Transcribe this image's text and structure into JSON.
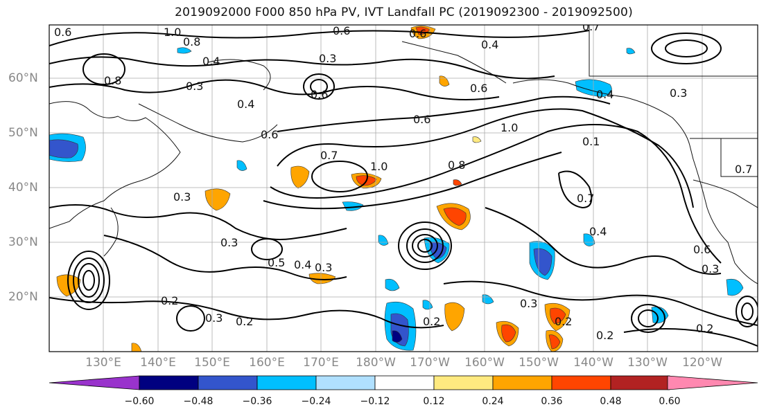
{
  "title": "2019092000 F000 850 hPa PV, IVT Landfall PC (2019092300 - 2019092500)",
  "lat_labels": [
    "60°N",
    "50°N",
    "40°N",
    "30°N",
    "20°N"
  ],
  "lon_labels": [
    "130°E",
    "140°E",
    "150°E",
    "160°E",
    "170°E",
    "180°W",
    "170°W",
    "160°W",
    "150°W",
    "140°W",
    "130°W",
    "120°W"
  ],
  "colorbar": {
    "ticks": [
      "−0.60",
      "−0.48",
      "−0.36",
      "−0.24",
      "−0.12",
      "0.12",
      "0.24",
      "0.36",
      "0.48",
      "0.60"
    ],
    "colors": [
      "#9933cc",
      "#000080",
      "#3355cc",
      "#00bfff",
      "#b0e0ff",
      "#ffffff",
      "#ffea80",
      "#ffa500",
      "#ff4500",
      "#b22222",
      "#ff88b0"
    ]
  },
  "contour_labels": [
    "0.6",
    "1.0",
    "0.8",
    "0.6",
    "0.6",
    "0.4",
    "0.3",
    "0.8",
    "0.3",
    "0.4",
    "0.6",
    "0.4",
    "0.6",
    "0.6",
    "0.7",
    "1.0",
    "0.6",
    "1.0",
    "0.8",
    "0.7",
    "0.4",
    "0.3",
    "0.3",
    "0.5",
    "0.4",
    "0.3",
    "0.2",
    "0.3",
    "0.2",
    "0.2",
    "0.3",
    "0.2",
    "0.6",
    "0.3",
    "0.7",
    "0.3",
    "0.4",
    "0.2",
    "0.2",
    "0.1",
    "0.7"
  ]
}
